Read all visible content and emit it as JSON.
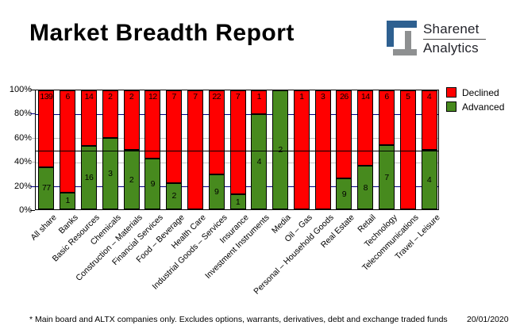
{
  "header": {
    "title": "Market Breadth Report",
    "logo": {
      "line1": "Sharenet",
      "line2": "Analytics"
    }
  },
  "footer": {
    "note": "* Main board and ALTX companies only. Excludes options, warrants, derivatives, debt and exchange traded funds",
    "date": "20/01/2020"
  },
  "colors": {
    "declined": "#ff0000",
    "advanced": "#478a1e",
    "grid_major": "#000080",
    "grid_minor": "#c0c0c0",
    "reference_line": "#000000",
    "axis": "#000000",
    "logo_blue": "#2e6090",
    "logo_gray": "#8e9091"
  },
  "chart_data": {
    "type": "bar",
    "stacked": true,
    "title": "Market Breadth Report",
    "unit": "number of companies (bar height = share of total, %)",
    "ylim": [
      0,
      100
    ],
    "y_ticks": [
      {
        "label": "100%",
        "pct": 100,
        "tick": "axis"
      },
      {
        "label": "80%",
        "pct": 80,
        "tick": "major"
      },
      {
        "label": "60%",
        "pct": 60,
        "tick": "minor"
      },
      {
        "label": "40%",
        "pct": 40,
        "tick": "minor"
      },
      {
        "label": "20%",
        "pct": 20,
        "tick": "major"
      },
      {
        "label": "0%",
        "pct": 0,
        "tick": "axis"
      }
    ],
    "gridlines": [
      {
        "pct": 80,
        "style": "major"
      },
      {
        "pct": 60,
        "style": "minor"
      },
      {
        "pct": 40,
        "style": "minor"
      },
      {
        "pct": 20,
        "style": "major"
      }
    ],
    "reference_line_pct": 50,
    "legend_position": "right-top",
    "categories": [
      "All share",
      "Banks",
      "Basic Resources",
      "Chemicals",
      "Construction – Materials",
      "Financial Services",
      "Food – Beverage",
      "Health Care",
      "Industrial Goods – Services",
      "Insurance",
      "Investment Instruments",
      "Media",
      "Oil – Gas",
      "Personal – Household Goods",
      "Real Estate",
      "Retail",
      "Technology",
      "Telecommunications",
      "Travel – Leisure"
    ],
    "series": [
      {
        "name": "Declined",
        "color": "#ff0000",
        "values": [
          139,
          6,
          14,
          2,
          2,
          12,
          7,
          7,
          22,
          7,
          1,
          0,
          1,
          3,
          26,
          14,
          6,
          5,
          4
        ]
      },
      {
        "name": "Advanced",
        "color": "#478a1e",
        "values": [
          77,
          1,
          16,
          3,
          2,
          9,
          2,
          0,
          9,
          1,
          4,
          2,
          0,
          0,
          9,
          8,
          7,
          0,
          4
        ]
      }
    ]
  }
}
